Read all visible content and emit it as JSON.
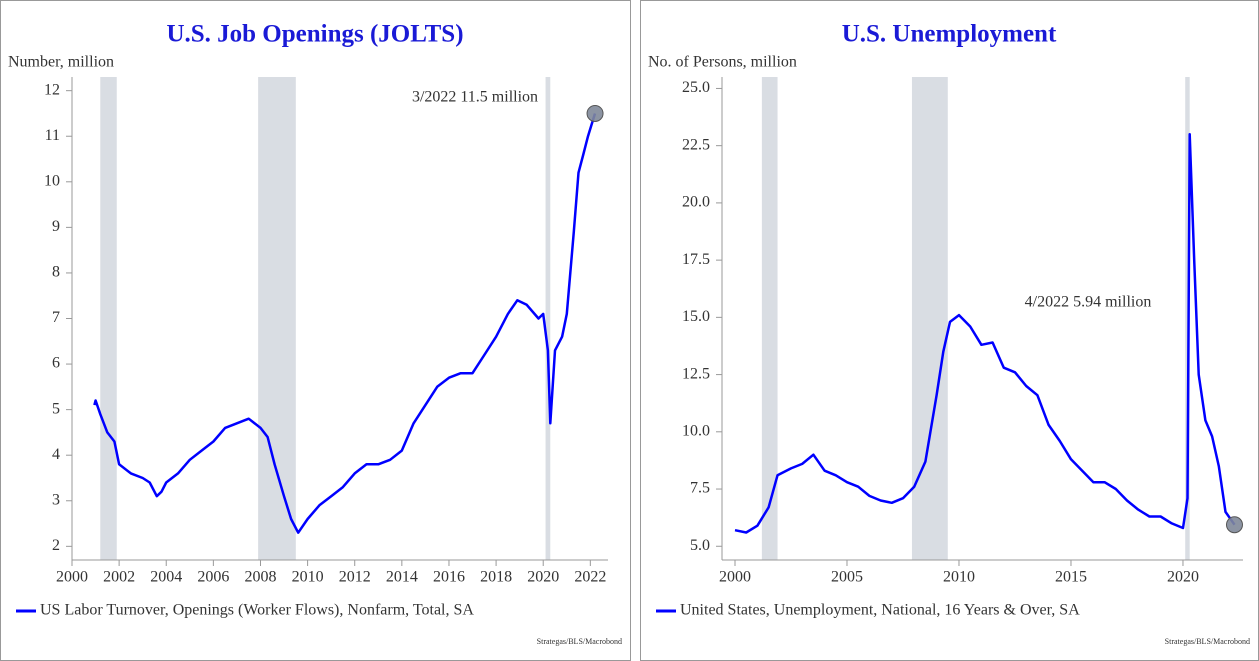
{
  "chart_data": [
    {
      "type": "line",
      "title": "U.S. Job Openings (JOLTS)",
      "y_label": "Number, million",
      "annotation": "3/2022 11.5 million",
      "source": "Strategas/BLS/Macrobond",
      "xlim": [
        2000,
        2022.75
      ],
      "xticks": [
        2000,
        2002,
        2004,
        2006,
        2008,
        2010,
        2012,
        2014,
        2016,
        2018,
        2020,
        2022
      ],
      "ylim": [
        1.7,
        12.3
      ],
      "yticks": [
        2,
        3,
        4,
        5,
        6,
        7,
        8,
        9,
        10,
        11,
        12
      ],
      "shaded_periods": [
        [
          2001.2,
          2001.9
        ],
        [
          2007.9,
          2009.5
        ],
        [
          2020.1,
          2020.3
        ]
      ],
      "shade_color": "#d9dde3",
      "marker": {
        "x": 2022.2,
        "y": 11.5,
        "color": "#7f8899"
      },
      "x": [
        2000.95,
        2001.0,
        2001.2,
        2001.5,
        2001.8,
        2002.0,
        2002.5,
        2003.0,
        2003.3,
        2003.6,
        2003.8,
        2004.0,
        2004.5,
        2005.0,
        2005.5,
        2006.0,
        2006.5,
        2007.0,
        2007.5,
        2008.0,
        2008.3,
        2008.6,
        2009.0,
        2009.3,
        2009.6,
        2010.0,
        2010.5,
        2011.0,
        2011.5,
        2012.0,
        2012.5,
        2013.0,
        2013.5,
        2014.0,
        2014.5,
        2015.0,
        2015.5,
        2016.0,
        2016.5,
        2017.0,
        2017.5,
        2018.0,
        2018.5,
        2018.9,
        2019.3,
        2019.8,
        2020.0,
        2020.2,
        2020.3,
        2020.5,
        2020.8,
        2021.0,
        2021.3,
        2021.5,
        2021.7,
        2021.9,
        2022.2
      ],
      "series": [
        {
          "name": "US Labor Turnover, Openings (Worker Flows), Nonfarm, Total, SA",
          "color": "#0000ff",
          "values": [
            5.1,
            5.2,
            4.9,
            4.5,
            4.3,
            3.8,
            3.6,
            3.5,
            3.4,
            3.1,
            3.2,
            3.4,
            3.6,
            3.9,
            4.1,
            4.3,
            4.6,
            4.7,
            4.8,
            4.6,
            4.4,
            3.8,
            3.1,
            2.6,
            2.3,
            2.6,
            2.9,
            3.1,
            3.3,
            3.6,
            3.8,
            3.8,
            3.9,
            4.1,
            4.7,
            5.1,
            5.5,
            5.7,
            5.8,
            5.8,
            6.2,
            6.6,
            7.1,
            7.4,
            7.3,
            7.0,
            7.1,
            6.3,
            4.7,
            6.3,
            6.6,
            7.1,
            8.9,
            10.2,
            10.6,
            11.0,
            11.5
          ]
        }
      ]
    },
    {
      "type": "line",
      "title": "U.S. Unemployment",
      "y_label": "No. of Persons, million",
      "annotation": "4/2022 5.94 million",
      "source": "Strategas/BLS/Macrobond",
      "xlim": [
        1999.42,
        2022.68
      ],
      "xticks": [
        2000,
        2005,
        2010,
        2015,
        2020
      ],
      "ylim": [
        4.4,
        25.5
      ],
      "yticks": [
        {
          "value": 5,
          "label": "5.0"
        },
        {
          "value": 7.5,
          "label": "7.5"
        },
        {
          "value": 10,
          "label": "10.0"
        },
        {
          "value": 12.5,
          "label": "12.5"
        },
        {
          "value": 15,
          "label": "15.0"
        },
        {
          "value": 17.5,
          "label": "17.5"
        },
        {
          "value": 20,
          "label": "20.0"
        },
        {
          "value": 22.5,
          "label": "22.5"
        },
        {
          "value": 25,
          "label": "25.0"
        }
      ],
      "shaded_periods": [
        [
          2001.2,
          2001.9
        ],
        [
          2007.9,
          2009.5
        ],
        [
          2020.1,
          2020.3
        ]
      ],
      "shade_color": "#d9dde3",
      "marker": {
        "x": 2022.3,
        "y": 5.94,
        "color": "#7f8899"
      },
      "x": [
        2000.0,
        2000.5,
        2001.0,
        2001.5,
        2001.9,
        2002.5,
        2003.0,
        2003.5,
        2004.0,
        2004.5,
        2005.0,
        2005.5,
        2006.0,
        2006.5,
        2007.0,
        2007.5,
        2008.0,
        2008.5,
        2009.0,
        2009.3,
        2009.6,
        2010.0,
        2010.5,
        2011.0,
        2011.5,
        2012.0,
        2012.5,
        2013.0,
        2013.5,
        2014.0,
        2014.5,
        2015.0,
        2015.5,
        2016.0,
        2016.5,
        2017.0,
        2017.5,
        2018.0,
        2018.5,
        2019.0,
        2019.5,
        2020.0,
        2020.2,
        2020.3,
        2020.5,
        2020.7,
        2021.0,
        2021.3,
        2021.6,
        2021.9,
        2022.3
      ],
      "series": [
        {
          "name": "United States, Unemployment, National, 16 Years & Over, SA",
          "color": "#0000ff",
          "values": [
            5.7,
            5.6,
            5.9,
            6.7,
            8.1,
            8.4,
            8.6,
            9.0,
            8.3,
            8.1,
            7.8,
            7.6,
            7.2,
            7.0,
            6.9,
            7.1,
            7.6,
            8.7,
            11.6,
            13.5,
            14.8,
            15.1,
            14.6,
            13.8,
            13.9,
            12.8,
            12.6,
            12.0,
            11.6,
            10.3,
            9.6,
            8.8,
            8.3,
            7.8,
            7.8,
            7.5,
            7.0,
            6.6,
            6.3,
            6.3,
            6.0,
            5.8,
            7.1,
            23.0,
            17.5,
            12.5,
            10.5,
            9.8,
            8.5,
            6.5,
            5.94
          ]
        }
      ]
    }
  ]
}
